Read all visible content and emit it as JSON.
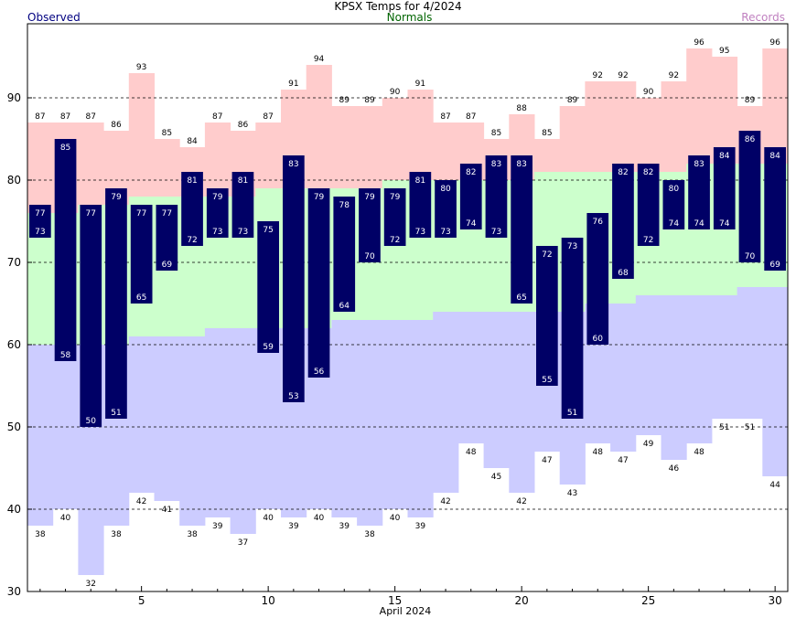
{
  "chart_data": {
    "type": "bar",
    "title": "KPSX Temps for 4/2024",
    "legend": {
      "observed": "Observed",
      "normals": "Normals",
      "records": "Records"
    },
    "xlabel": "April 2024",
    "x_ticks": [
      5,
      10,
      15,
      20,
      25,
      30
    ],
    "y_ticks": [
      30,
      40,
      50,
      60,
      70,
      80,
      90
    ],
    "ylim": [
      30,
      99
    ],
    "grid": "dashed horizontal at 40, 50, 70, 80, 90",
    "days": [
      1,
      2,
      3,
      4,
      5,
      6,
      7,
      8,
      9,
      10,
      11,
      12,
      13,
      14,
      15,
      16,
      17,
      18,
      19,
      20,
      21,
      22,
      23,
      24,
      25,
      26,
      27,
      28,
      29,
      30
    ],
    "record_high": [
      87,
      87,
      87,
      86,
      93,
      85,
      84,
      87,
      86,
      87,
      91,
      94,
      89,
      89,
      90,
      91,
      87,
      87,
      85,
      88,
      85,
      89,
      92,
      92,
      90,
      92,
      96,
      95,
      89,
      96
    ],
    "record_low": [
      38,
      40,
      32,
      38,
      42,
      41,
      38,
      39,
      37,
      40,
      39,
      40,
      39,
      38,
      40,
      39,
      42,
      48,
      45,
      42,
      47,
      43,
      48,
      47,
      49,
      46,
      48,
      51,
      51,
      44
    ],
    "normal_high": [
      76,
      76,
      77,
      77,
      78,
      78,
      78,
      78,
      78,
      79,
      79,
      79,
      79,
      79,
      80,
      80,
      80,
      80,
      80,
      80,
      81,
      81,
      81,
      81,
      81,
      81,
      82,
      82,
      82,
      82
    ],
    "normal_low": [
      60,
      60,
      60,
      60,
      61,
      61,
      61,
      62,
      62,
      62,
      62,
      62,
      63,
      63,
      63,
      63,
      64,
      64,
      64,
      64,
      64,
      64,
      65,
      65,
      66,
      66,
      66,
      66,
      67,
      67
    ],
    "observed_high": [
      77,
      85,
      77,
      79,
      77,
      77,
      81,
      79,
      81,
      75,
      83,
      79,
      78,
      79,
      79,
      81,
      80,
      82,
      83,
      83,
      72,
      73,
      76,
      82,
      82,
      80,
      83,
      84,
      86,
      84
    ],
    "observed_low": [
      73,
      58,
      50,
      51,
      65,
      69,
      72,
      73,
      73,
      59,
      53,
      56,
      64,
      70,
      72,
      73,
      73,
      74,
      73,
      65,
      55,
      51,
      60,
      68,
      72,
      74,
      74,
      74,
      70,
      69
    ],
    "colors": {
      "record_band": "#ffcccc",
      "normal_band": "#ccffcc",
      "low_band": "#ccccff",
      "observed_bar": "#000066",
      "observed_text": "#ffffff",
      "title": "#000000",
      "observed_label": "#000080",
      "normals_label": "#006400",
      "records_label": "#c080c0"
    }
  }
}
